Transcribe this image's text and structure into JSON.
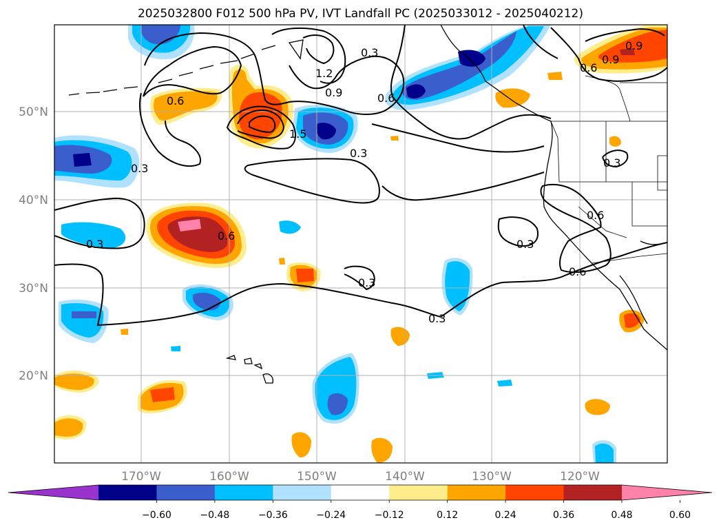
{
  "title": "2025032800 F012 500 hPa PV, IVT Landfall PC (2025033012 - 2025040212)",
  "lat_labels": [
    "50°N",
    "40°N",
    "30°N",
    "20°N"
  ],
  "lon_labels": [
    "170°W",
    "160°W",
    "150°W",
    "140°W",
    "130°W",
    "120°W"
  ],
  "contour_labels": [
    "0.6",
    "0.9",
    "1.2",
    "0.3",
    "0.3",
    "0.3",
    "0.6",
    "0.3",
    "0.3",
    "0.3",
    "1.5",
    "0.6",
    "0.9",
    "0.9",
    "0.6",
    "0.3",
    "0.6",
    "0.3",
    "0.6"
  ],
  "colorbar": {
    "ticks": [
      "−0.60",
      "−0.48",
      "−0.36",
      "−0.24",
      "−0.12",
      "0.12",
      "0.24",
      "0.36",
      "0.48",
      "0.60"
    ],
    "colors": [
      "#9a32cd",
      "#00008b",
      "#3a5fcd",
      "#00bfff",
      "#b0e2ff",
      "#ffffff",
      "#ffec8b",
      "#ffa500",
      "#ff4500",
      "#b22222",
      "#ff82ab"
    ]
  }
}
